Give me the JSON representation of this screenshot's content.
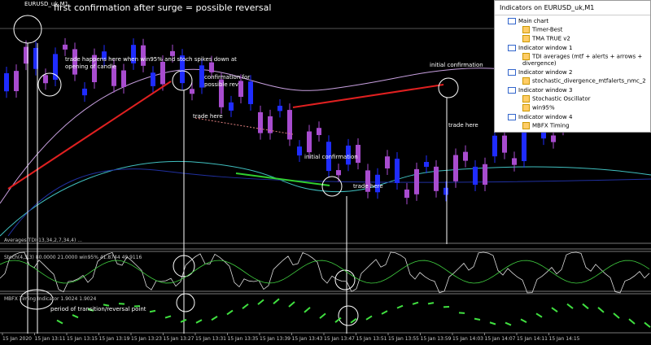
{
  "chart_window": {
    "symbol": "EURUSD_uk,M1",
    "annotations": {
      "headline": "first confirmation after surge = possible reversal",
      "trade_rule": "trade happens here when win95% and stoch  spikes down at",
      "trade_rule_2": "opening of candle",
      "confirm": "confirmation for",
      "confirm_2": "possible rev",
      "trade_1": "trade here",
      "trade_2": "trade here",
      "trade_3": "trade here",
      "initial_1": "initial confirmation",
      "initial_2": "initial confirmation",
      "transition": "period of transition/reversal point"
    },
    "panels": {
      "tdi": "Averages TDI(13,34,2,7,34,4) ...",
      "stoch": "Stoch(4,3,3) 80.0000 21.0000  win95% 41.8744 49.9116",
      "mbfx": "MBFX Timing Indicator 1.9024 1.9024"
    },
    "time_axis": [
      "15 Jan 2020",
      "15 Jan 13:11",
      "15 Jan 13:15",
      "15 Jan 13:19",
      "15 Jan 13:23",
      "15 Jan 13:27",
      "15 Jan 13:31",
      "15 Jan 13:35",
      "15 Jan 13:39",
      "15 Jan 13:43",
      "15 Jan 13:47",
      "15 Jan 13:51",
      "15 Jan 13:55",
      "15 Jan 13:59",
      "15 Jan 14:03",
      "15 Jan 14:07",
      "15 Jan 14:11",
      "15 Jan 14:15"
    ]
  },
  "indicators_window": {
    "title": "Indicators on EURUSD_uk,M1",
    "groups": [
      {
        "name": "Main chart",
        "items": [
          "Timer-Best",
          "TMA TRUE v2"
        ]
      },
      {
        "name": "Indicator window 1",
        "items": [
          "TDI averages (mtf + alerts + arrows + divergence)"
        ]
      },
      {
        "name": "Indicator window 2",
        "items": [
          "stochastic_divergence_mtfalerts_nmc_2"
        ]
      },
      {
        "name": "Indicator window 3",
        "items": [
          "Stochastic Oscillator",
          "win95%"
        ]
      },
      {
        "name": "Indicator window 4",
        "items": [
          "MBFX Timing"
        ]
      }
    ]
  }
}
